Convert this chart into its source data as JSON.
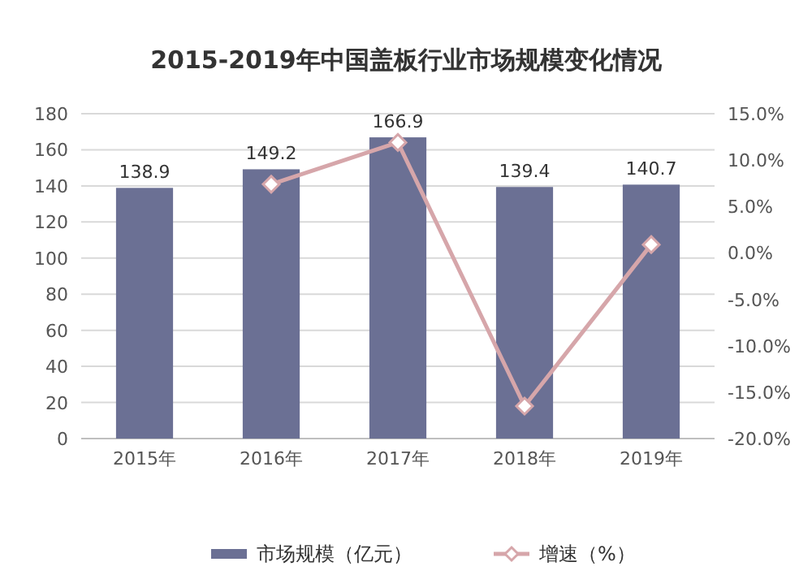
{
  "chart_data": {
    "type": "bar",
    "title": "2015-2019年中国盖板行业市场规模变化情况",
    "categories": [
      "2015年",
      "2016年",
      "2017年",
      "2018年",
      "2019年"
    ],
    "series": [
      {
        "name": "市场规模（亿元）",
        "color": "#6b7094",
        "values": [
          138.9,
          149.2,
          166.9,
          139.4,
          140.7
        ],
        "value_labels": [
          "138.9",
          "149.2",
          "166.9",
          "139.4",
          "140.7"
        ]
      },
      {
        "name": "增速（%）",
        "type": "line",
        "axis": "y2",
        "color": "#d6a6aa",
        "marker": "diamond",
        "values": [
          null,
          7.4,
          11.9,
          -16.5,
          0.9
        ]
      }
    ],
    "ylim": [
      0,
      180
    ],
    "yticks": [
      0,
      20,
      40,
      60,
      80,
      100,
      120,
      140,
      160,
      180
    ],
    "y2lim": [
      -20,
      15
    ],
    "y2ticks": [
      {
        "value": -20,
        "label": "-20.0%"
      },
      {
        "value": -15,
        "label": "-15.0%"
      },
      {
        "value": -10,
        "label": "-10.0%"
      },
      {
        "value": -5,
        "label": "-5.0%"
      },
      {
        "value": 0,
        "label": "0.0%"
      },
      {
        "value": 5,
        "label": "5.0%"
      },
      {
        "value": 10,
        "label": "10.0%"
      },
      {
        "value": 15,
        "label": "15.0%"
      }
    ],
    "grid": "y",
    "legend": "bottom"
  }
}
